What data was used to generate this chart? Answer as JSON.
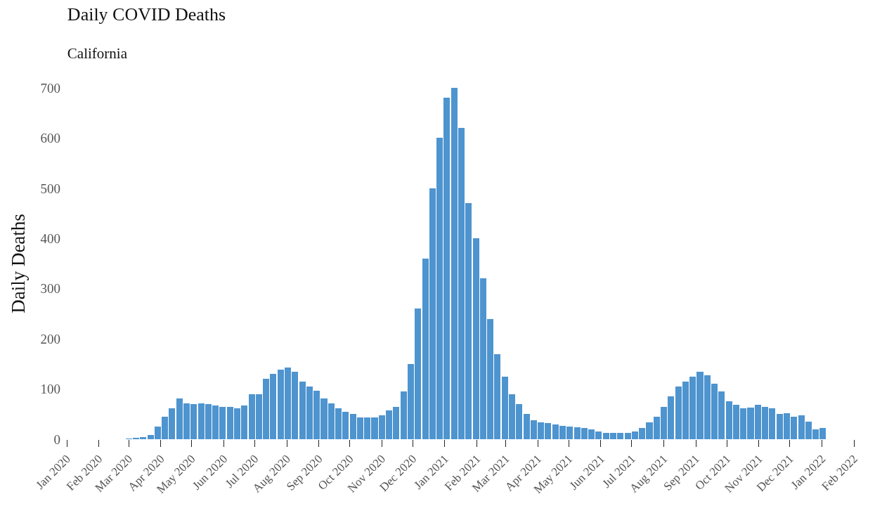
{
  "chart_data": {
    "type": "bar",
    "title": "Daily COVID Deaths",
    "subtitle": "California",
    "ylabel": "Daily Deaths",
    "x": [
      "2020-03-01",
      "2020-03-08",
      "2020-03-15",
      "2020-03-22",
      "2020-03-29",
      "2020-04-05",
      "2020-04-12",
      "2020-04-19",
      "2020-04-26",
      "2020-05-03",
      "2020-05-10",
      "2020-05-17",
      "2020-05-24",
      "2020-05-31",
      "2020-06-07",
      "2020-06-14",
      "2020-06-21",
      "2020-06-28",
      "2020-07-05",
      "2020-07-12",
      "2020-07-19",
      "2020-07-26",
      "2020-08-02",
      "2020-08-09",
      "2020-08-16",
      "2020-08-23",
      "2020-08-30",
      "2020-09-06",
      "2020-09-13",
      "2020-09-20",
      "2020-09-27",
      "2020-10-04",
      "2020-10-11",
      "2020-10-18",
      "2020-10-25",
      "2020-11-01",
      "2020-11-08",
      "2020-11-15",
      "2020-11-22",
      "2020-11-29",
      "2020-12-06",
      "2020-12-13",
      "2020-12-20",
      "2020-12-27",
      "2021-01-03",
      "2021-01-10",
      "2021-01-17",
      "2021-01-24",
      "2021-01-31",
      "2021-02-07",
      "2021-02-14",
      "2021-02-21",
      "2021-02-28",
      "2021-03-07",
      "2021-03-14",
      "2021-03-21",
      "2021-03-28",
      "2021-04-04",
      "2021-04-11",
      "2021-04-18",
      "2021-04-25",
      "2021-05-02",
      "2021-05-09",
      "2021-05-16",
      "2021-05-23",
      "2021-05-30",
      "2021-06-06",
      "2021-06-13",
      "2021-06-20",
      "2021-06-27",
      "2021-07-04",
      "2021-07-11",
      "2021-07-18",
      "2021-07-25",
      "2021-08-01",
      "2021-08-08",
      "2021-08-15",
      "2021-08-22",
      "2021-08-29",
      "2021-09-05",
      "2021-09-12",
      "2021-09-19",
      "2021-09-26",
      "2021-10-03",
      "2021-10-10",
      "2021-10-17",
      "2021-10-24",
      "2021-10-31",
      "2021-11-07",
      "2021-11-14",
      "2021-11-21",
      "2021-11-28",
      "2021-12-05",
      "2021-12-12",
      "2021-12-19",
      "2021-12-26",
      "2022-01-02"
    ],
    "values": [
      1,
      2,
      4,
      8,
      25,
      45,
      62,
      81,
      72,
      70,
      72,
      70,
      67,
      65,
      65,
      62,
      67,
      90,
      90,
      120,
      130,
      139,
      143,
      134,
      115,
      105,
      96,
      81,
      72,
      62,
      55,
      50,
      43,
      43,
      43,
      48,
      57,
      65,
      95,
      150,
      260,
      360,
      500,
      600,
      680,
      700,
      620,
      470,
      400,
      320,
      240,
      170,
      125,
      90,
      70,
      50,
      38,
      33,
      32,
      30,
      27,
      25,
      24,
      22,
      20,
      15,
      13,
      12,
      12,
      13,
      15,
      22,
      33,
      45,
      65,
      85,
      105,
      115,
      125,
      135,
      128,
      110,
      95,
      75,
      68,
      62,
      63,
      68,
      65,
      61,
      50,
      52,
      45,
      47,
      35,
      20,
      22
    ],
    "color": "#4e94cf",
    "xlim": [
      "2020-01-01",
      "2022-02-01"
    ],
    "xticks": [
      {
        "value": "2020-01-01",
        "label": "Jan 2020"
      },
      {
        "value": "2020-02-01",
        "label": "Feb 2020"
      },
      {
        "value": "2020-03-01",
        "label": "Mar 2020"
      },
      {
        "value": "2020-04-01",
        "label": "Apr 2020"
      },
      {
        "value": "2020-05-01",
        "label": "May 2020"
      },
      {
        "value": "2020-06-01",
        "label": "Jun 2020"
      },
      {
        "value": "2020-07-01",
        "label": "Jul 2020"
      },
      {
        "value": "2020-08-01",
        "label": "Aug 2020"
      },
      {
        "value": "2020-09-01",
        "label": "Sep 2020"
      },
      {
        "value": "2020-10-01",
        "label": "Oct 2020"
      },
      {
        "value": "2020-11-01",
        "label": "Nov 2020"
      },
      {
        "value": "2020-12-01",
        "label": "Dec 2020"
      },
      {
        "value": "2021-01-01",
        "label": "Jan 2021"
      },
      {
        "value": "2021-02-01",
        "label": "Feb 2021"
      },
      {
        "value": "2021-03-01",
        "label": "Mar 2021"
      },
      {
        "value": "2021-04-01",
        "label": "Apr 2021"
      },
      {
        "value": "2021-05-01",
        "label": "May 2021"
      },
      {
        "value": "2021-06-01",
        "label": "Jun 2021"
      },
      {
        "value": "2021-07-01",
        "label": "Jul 2021"
      },
      {
        "value": "2021-08-01",
        "label": "Aug 2021"
      },
      {
        "value": "2021-09-01",
        "label": "Sep 2021"
      },
      {
        "value": "2021-10-01",
        "label": "Oct 2021"
      },
      {
        "value": "2021-11-01",
        "label": "Nov 2021"
      },
      {
        "value": "2021-12-01",
        "label": "Dec 2021"
      },
      {
        "value": "2022-01-01",
        "label": "Jan 2022"
      },
      {
        "value": "2022-02-01",
        "label": "Feb 2022"
      }
    ],
    "ylim": [
      0,
      700
    ],
    "yticks": [
      0,
      100,
      200,
      300,
      400,
      500,
      600,
      700
    ],
    "grid": false,
    "legend": false
  }
}
